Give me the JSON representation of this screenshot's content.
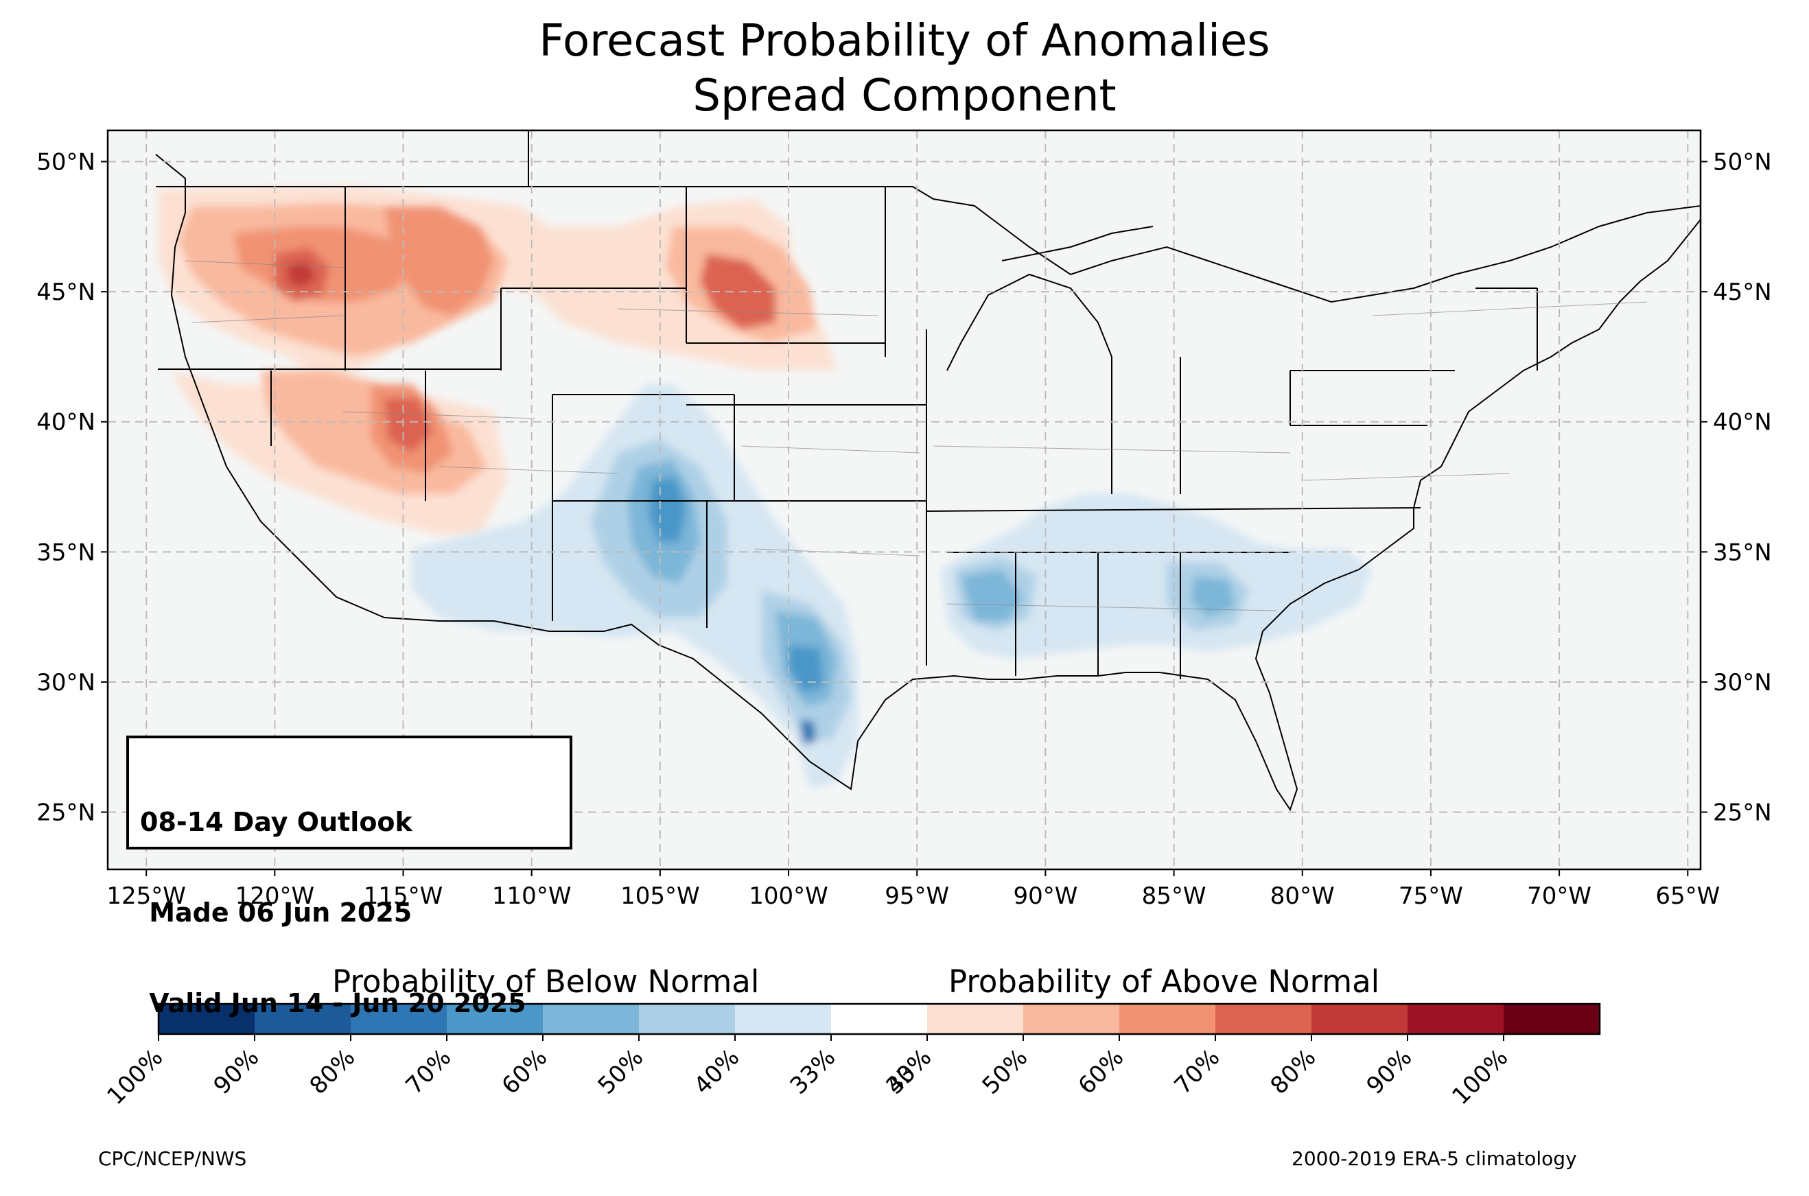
{
  "title": {
    "line1": "Forecast Probability of Anomalies",
    "line2": "Spread Component"
  },
  "outlook_box": {
    "line1": "08-14 Day Outlook",
    "line2": " Made 06 Jun 2025",
    "line3": " Valid Jun 14 - Jun 20 2025"
  },
  "map": {
    "lon_range": [
      -126.5,
      -64.5
    ],
    "lat_range": [
      22.8,
      51.2
    ],
    "lon_ticks": [
      "125°W",
      "120°W",
      "115°W",
      "110°W",
      "105°W",
      "100°W",
      "95°W",
      "90°W",
      "85°W",
      "80°W",
      "75°W",
      "70°W",
      "65°W"
    ],
    "lat_ticks_left": [
      "50°N",
      "45°N",
      "40°N",
      "35°N",
      "30°N",
      "25°N"
    ],
    "lat_ticks_right": [
      "50°N",
      "45°N",
      "40°N",
      "35°N",
      "30°N",
      "25°N"
    ],
    "background_color": "#f4f6f6",
    "above_normal_regions": [
      {
        "area": "Pacific Northwest / Oregon",
        "lon": -119.5,
        "lat": 45.5,
        "peak": "70%"
      },
      {
        "area": "Idaho / western Montana",
        "lon": -113.5,
        "lat": 45.5,
        "peak": "60%"
      },
      {
        "area": "Utah / Nevada",
        "lon": -114.0,
        "lat": 40.0,
        "peak": "60%"
      },
      {
        "area": "Wyoming",
        "lon": -109.5,
        "lat": 43.0,
        "peak": "60%"
      },
      {
        "area": "South Dakota",
        "lon": -101.5,
        "lat": 44.5,
        "peak": "60%"
      },
      {
        "area": "California",
        "lon": -120.5,
        "lat": 37.5,
        "peak": "50%"
      }
    ],
    "below_normal_regions": [
      {
        "area": "New Mexico / Colorado",
        "lon": -105.0,
        "lat": 35.5,
        "peak": "70%"
      },
      {
        "area": "Central / South Texas",
        "lon": -100.0,
        "lat": 29.5,
        "peak": "70%"
      },
      {
        "area": "Louisiana / Mississippi",
        "lon": -92.0,
        "lat": 33.0,
        "peak": "60%"
      },
      {
        "area": "Georgia",
        "lon": -83.5,
        "lat": 33.0,
        "peak": "60%"
      },
      {
        "area": "Tennessee",
        "lon": -86.0,
        "lat": 35.8,
        "peak": "50%"
      }
    ]
  },
  "colorbar": {
    "below_label": "Probability of Below Normal",
    "above_label": "Probability of Above Normal",
    "tick_labels": [
      "100%",
      "90%",
      "80%",
      "70%",
      "60%",
      "50%",
      "40%",
      "33%",
      "33%",
      "40%",
      "50%",
      "60%",
      "70%",
      "80%",
      "90%",
      "100%"
    ],
    "colors": [
      "#08306b",
      "#1c5a99",
      "#2f76b4",
      "#4a97c8",
      "#7cb6d8",
      "#aed0e6",
      "#d6e6f2",
      "#ffffff",
      "#fce1d3",
      "#f9b99e",
      "#f19373",
      "#dc6451",
      "#c13a39",
      "#9e1225",
      "#6a0015"
    ]
  },
  "footer": {
    "left": "CPC/NCEP/NWS",
    "right": "2000-2019 ERA-5 climatology"
  }
}
